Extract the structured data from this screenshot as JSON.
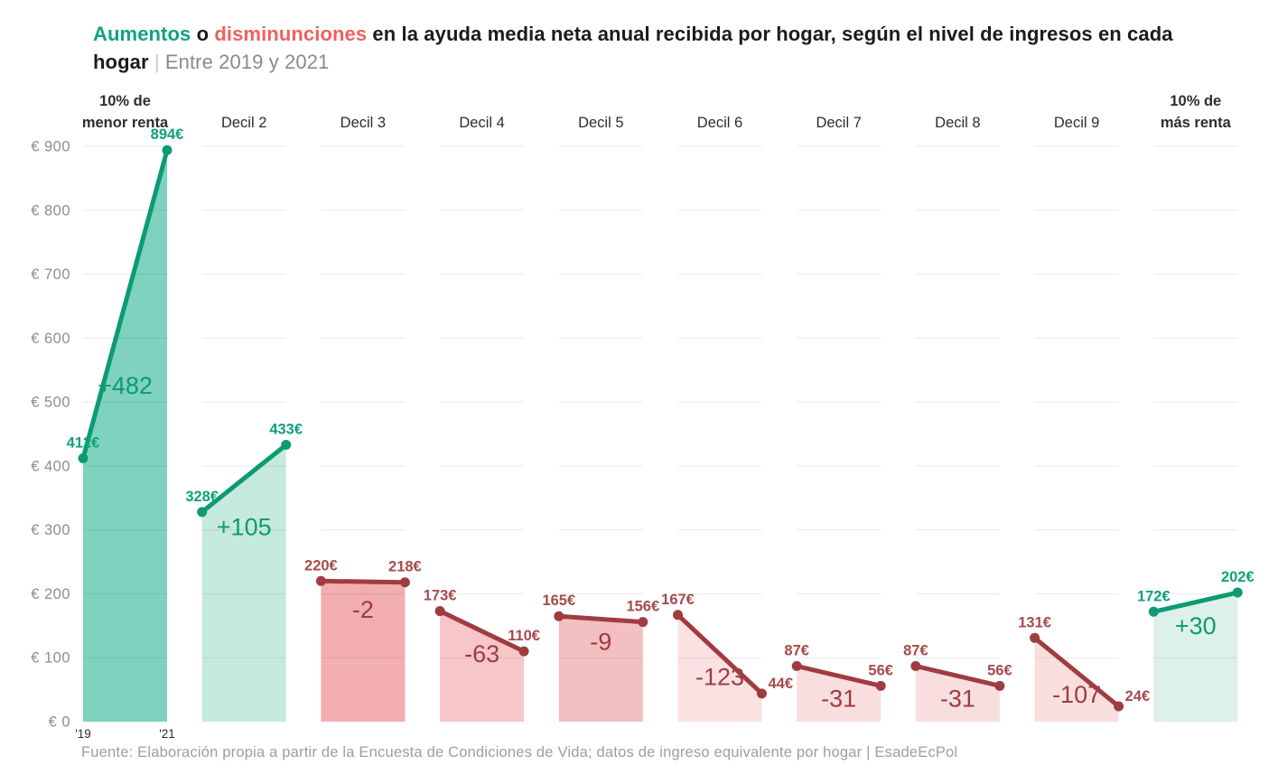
{
  "title": {
    "part_increase": "Aumentos",
    "part_connector": " o ",
    "part_decrease": "disminunciones",
    "part_rest": " en la ayuda media neta anual recibida por hogar, según el nivel de ingresos en cada hogar ",
    "separator": "| ",
    "subtitle": "Entre 2019 y 2021"
  },
  "footer": {
    "source": "Fuente: Elaboración propia a partir de la Encuesta de Condiciones de Vida; datos de ingreso equivalente por hogar | EsadeEcPol"
  },
  "chart_data": {
    "type": "area",
    "subtype": "slope-area-small-multiples",
    "x": [
      "'19",
      "'21"
    ],
    "x_labels_note": "year labels shown under first column only",
    "ylim": [
      0,
      900
    ],
    "y_ticks": [
      900,
      800,
      700,
      600,
      500,
      400,
      300,
      200,
      100,
      0
    ],
    "y_tick_prefix": "€ ",
    "value_suffix": "€",
    "grid": true,
    "columns": [
      {
        "label": "10% de\nmenor renta",
        "emphasis": true,
        "values": [
          412,
          894
        ],
        "change": "+482",
        "direction": "up",
        "fill": "#7fd2bd"
      },
      {
        "label": "Decil 2",
        "emphasis": false,
        "values": [
          328,
          433
        ],
        "change": "+105",
        "direction": "up",
        "fill": "#c6e9de"
      },
      {
        "label": "Decil 3",
        "emphasis": false,
        "values": [
          220,
          218
        ],
        "change": "-2",
        "direction": "down",
        "fill": "#f2aeb1"
      },
      {
        "label": "Decil 4",
        "emphasis": false,
        "values": [
          173,
          110
        ],
        "change": "-63",
        "direction": "down",
        "fill": "#f6c6c8"
      },
      {
        "label": "Decil 5",
        "emphasis": false,
        "values": [
          165,
          156
        ],
        "change": "-9",
        "direction": "down",
        "fill": "#f4bfc1"
      },
      {
        "label": "Decil 6",
        "emphasis": false,
        "values": [
          167,
          44
        ],
        "change": "-123",
        "direction": "down",
        "fill": "#fae2e3",
        "end_label_pos": "right"
      },
      {
        "label": "Decil 7",
        "emphasis": false,
        "values": [
          87,
          56
        ],
        "change": "-31",
        "direction": "down",
        "fill": "#f9dedf"
      },
      {
        "label": "Decil 8",
        "emphasis": false,
        "values": [
          87,
          56
        ],
        "change": "-31",
        "direction": "down",
        "fill": "#f9dedf"
      },
      {
        "label": "Decil 9",
        "emphasis": false,
        "values": [
          131,
          24
        ],
        "change": "-107",
        "direction": "down",
        "fill": "#f9dede",
        "end_label_pos": "right"
      },
      {
        "label": "10% de\nmás renta",
        "emphasis": true,
        "values": [
          172,
          202
        ],
        "change": "+30",
        "direction": "up",
        "fill": "#def0ea"
      }
    ],
    "colors": {
      "up_line": "#0c9b72",
      "down_line": "#a03c40",
      "up_text": "#10a17b",
      "down_text": "#a64a4d",
      "grid": "rgba(0,0,0,0.065)",
      "axis_text": "#8e8e8e",
      "header_text": "#2d2d2d",
      "year_text": "#2b2b2b"
    }
  }
}
